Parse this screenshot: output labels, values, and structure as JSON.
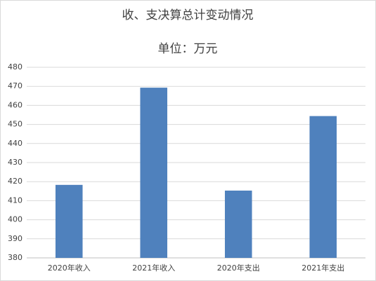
{
  "chart_data": {
    "type": "bar",
    "title": "收、支决算总计变动情况",
    "subtitle": "单位：万元",
    "categories": [
      "2020年收入",
      "2021年收入",
      "2020年支出",
      "2021年支出"
    ],
    "values": [
      418.3,
      469.3,
      415.3,
      454.4
    ],
    "color": "#4f81bd",
    "ylim": [
      380,
      480
    ],
    "yticks": [
      380,
      390,
      400,
      410,
      420,
      430,
      440,
      450,
      460,
      470,
      480
    ],
    "grid": true
  }
}
